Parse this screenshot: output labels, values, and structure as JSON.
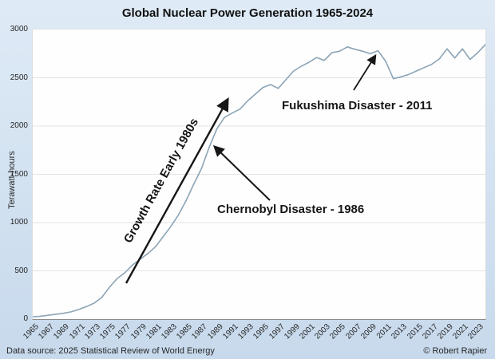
{
  "title": "Global Nuclear Power Generation 1965-2024",
  "y_axis": {
    "label": "Terawatt-hours",
    "ticks": [
      0,
      500,
      1000,
      1500,
      2000,
      2500,
      3000
    ]
  },
  "x_axis": {
    "tick_years": [
      1965,
      1967,
      1969,
      1971,
      1973,
      1975,
      1977,
      1979,
      1981,
      1983,
      1985,
      1987,
      1989,
      1991,
      1993,
      1995,
      1997,
      1999,
      2001,
      2003,
      2005,
      2007,
      2009,
      2011,
      2013,
      2015,
      2017,
      2019,
      2021,
      2023
    ]
  },
  "annotations": {
    "growth": {
      "text": "Growth Rate Early 1980s"
    },
    "chernobyl": {
      "text": "Chernobyl Disaster - 1986"
    },
    "fukushima": {
      "text": "Fukushima Disaster - 2011"
    }
  },
  "footer": {
    "source": "Data source: 2025 Statistical Review of World Energy",
    "credit": "© Robert Rapier"
  },
  "colors": {
    "line": "#8ba4b6",
    "gridline": "#e4e4e4",
    "annotation_ink": "#161616",
    "background_top": "#dfeaf6",
    "background_bottom": "#c7d9ec",
    "plot_background": "#fefefe"
  },
  "chart_data": {
    "type": "line",
    "title": "Global Nuclear Power Generation 1965-2024",
    "xlabel": "",
    "ylabel": "Terawatt-hours",
    "ylim": [
      0,
      3000
    ],
    "xlim": [
      1965,
      2024
    ],
    "grid": "horizontal",
    "legend": "none",
    "x": [
      1965,
      1966,
      1967,
      1968,
      1969,
      1970,
      1971,
      1972,
      1973,
      1974,
      1975,
      1976,
      1977,
      1978,
      1979,
      1980,
      1981,
      1982,
      1983,
      1984,
      1985,
      1986,
      1987,
      1988,
      1989,
      1990,
      1991,
      1992,
      1993,
      1994,
      1995,
      1996,
      1997,
      1998,
      1999,
      2000,
      2001,
      2002,
      2003,
      2004,
      2005,
      2006,
      2007,
      2008,
      2009,
      2010,
      2011,
      2012,
      2013,
      2014,
      2015,
      2016,
      2017,
      2018,
      2019,
      2020,
      2021,
      2022,
      2023,
      2024
    ],
    "values": [
      25,
      30,
      40,
      50,
      60,
      75,
      100,
      130,
      165,
      225,
      330,
      420,
      480,
      560,
      620,
      680,
      750,
      855,
      960,
      1080,
      1230,
      1400,
      1560,
      1780,
      1970,
      2090,
      2135,
      2175,
      2260,
      2330,
      2400,
      2430,
      2390,
      2480,
      2570,
      2620,
      2660,
      2710,
      2680,
      2760,
      2775,
      2820,
      2795,
      2775,
      2750,
      2780,
      2670,
      2490,
      2510,
      2535,
      2570,
      2605,
      2640,
      2695,
      2800,
      2705,
      2800,
      2690,
      2760,
      2845
    ]
  }
}
